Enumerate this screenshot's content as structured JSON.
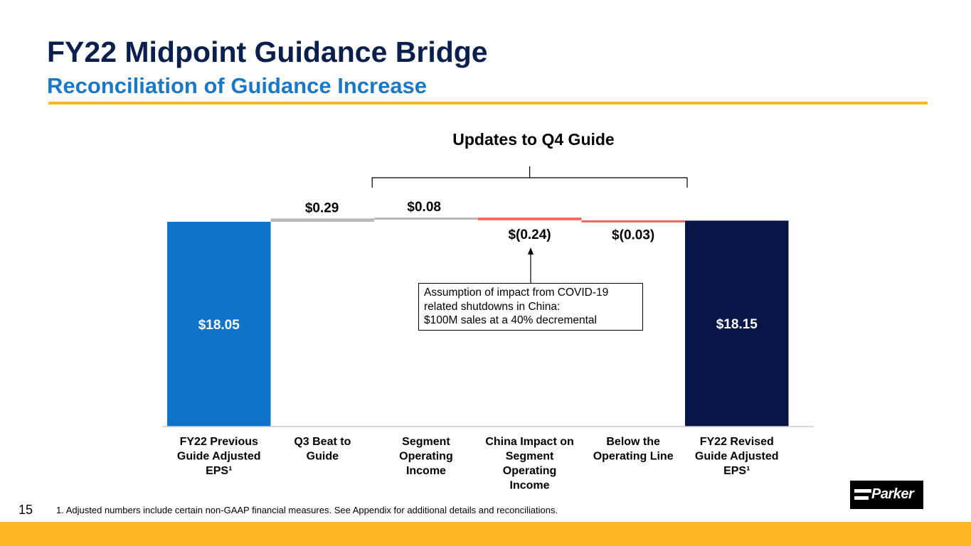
{
  "title": "FY22 Midpoint Guidance Bridge",
  "subtitle": "Reconciliation of Guidance Increase",
  "colors": {
    "navy": "#0a1f4d",
    "blue": "#1a78c8",
    "accent_yellow": "#f9b91e",
    "bar_blue": "#0f74c8",
    "bar_gray": "#b7b7b7",
    "bar_red": "#fe6359",
    "bar_navy": "#071646",
    "axis": "#c9c9c9"
  },
  "chart_data": {
    "type": "bar",
    "subtype": "waterfall",
    "title": "Updates to Q4 Guide",
    "ylim": [
      0,
      20
    ],
    "categories": [
      [
        "FY22 Previous",
        "Guide Adjusted",
        "EPS¹"
      ],
      [
        "Q3 Beat to",
        "Guide"
      ],
      [
        "Segment",
        "Operating",
        "Income"
      ],
      [
        "China Impact on",
        "Segment",
        "Operating",
        "Income"
      ],
      [
        "Below the",
        "Operating Line"
      ],
      [
        "FY22 Revised",
        "Guide Adjusted",
        "EPS¹"
      ]
    ],
    "values": [
      18.05,
      0.29,
      0.08,
      -0.24,
      -0.03,
      18.15
    ],
    "kinds": [
      "total",
      "increase",
      "increase",
      "decrease",
      "decrease",
      "total"
    ],
    "labels": [
      "$18.05",
      "$0.29",
      "$0.08",
      "$(0.24)",
      "$(0.03)",
      "$18.15"
    ],
    "bracket_span": "Segment Operating Income through Below the Operating Line"
  },
  "callout": {
    "lines": [
      "Assumption of impact from COVID-19",
      "related  shutdowns  in China:",
      "$100M  sales at a 40% decremental"
    ]
  },
  "footer": {
    "page_number": "15",
    "footnote": "1. Adjusted numbers include certain non-GAAP financial measures. See Appendix for additional details and reconciliations.",
    "logo_text": "Parker"
  }
}
